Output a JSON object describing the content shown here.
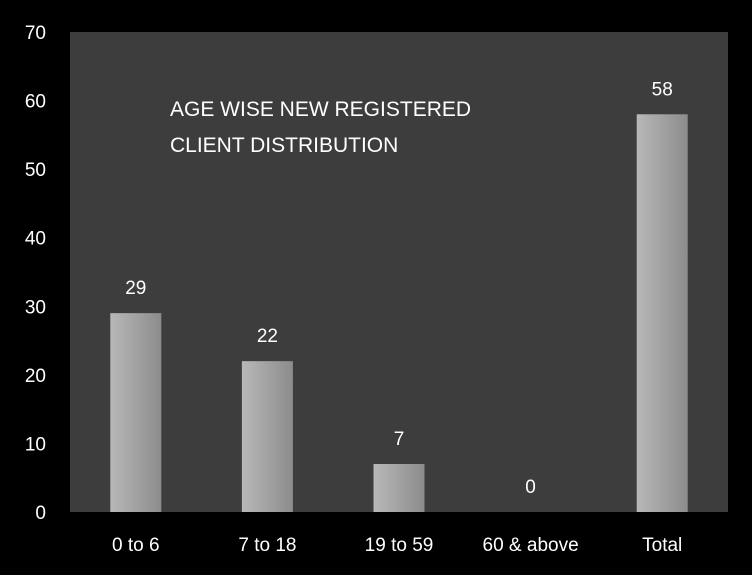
{
  "chart_data": {
    "type": "bar",
    "title_lines": [
      "AGE WISE NEW REGISTERED",
      "CLIENT DISTRIBUTION"
    ],
    "categories": [
      "0 to 6",
      "7 to 18",
      "19 to 59",
      "60 & above",
      "Total"
    ],
    "values": [
      29,
      22,
      7,
      0,
      58
    ],
    "xlabel": "",
    "ylabel": "",
    "ylim": [
      0,
      70
    ],
    "yticks": [
      0,
      10,
      20,
      30,
      40,
      50,
      60,
      70
    ],
    "grid": false,
    "legend": "none"
  },
  "colors": {
    "background": "#000000",
    "plot_area": "#3d3d3d",
    "bar_light": "#b4b4b4",
    "bar_dark": "#8a8a8a",
    "text": "#ffffff"
  }
}
